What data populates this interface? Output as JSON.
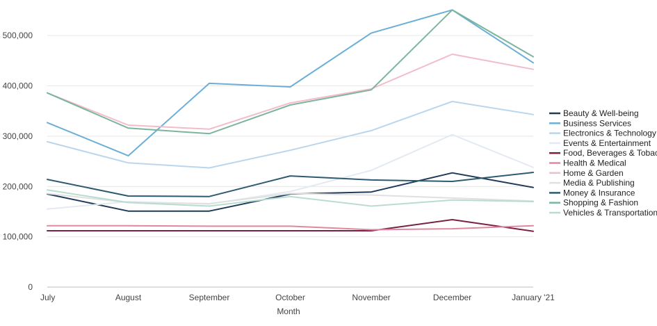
{
  "chart_data": {
    "type": "line",
    "title": "",
    "xlabel": "Month",
    "ylabel": "",
    "categories": [
      "July",
      "August",
      "September",
      "October",
      "November",
      "December",
      "January '21"
    ],
    "ylim": [
      0,
      550000
    ],
    "yticks": [
      0,
      100000,
      200000,
      300000,
      400000,
      500000
    ],
    "ytick_labels": [
      "0",
      "100,000",
      "200,000",
      "300,000",
      "400,000",
      "500,000"
    ],
    "grid": true,
    "legend_position": "right",
    "series": [
      {
        "name": "Beauty & Well-being",
        "color": "#1f3b5c",
        "values": [
          185000,
          151000,
          151000,
          185000,
          189000,
          227000,
          198000
        ]
      },
      {
        "name": "Business Services",
        "color": "#6baed6",
        "values": [
          327000,
          261000,
          405000,
          398000,
          505000,
          551000,
          446000
        ]
      },
      {
        "name": "Electronics & Technology",
        "color": "#b9d6ee",
        "values": [
          289000,
          247000,
          237000,
          272000,
          311000,
          369000,
          343000
        ]
      },
      {
        "name": "Events & Entertainment",
        "color": "#e3eaf2",
        "values": [
          155000,
          170000,
          165000,
          190000,
          232000,
          303000,
          238000
        ]
      },
      {
        "name": "Food, Beverages & Tobacco",
        "color": "#7b1f45",
        "values": [
          112000,
          112000,
          112000,
          112000,
          112000,
          134000,
          111000
        ]
      },
      {
        "name": "Health & Medical",
        "color": "#e0899e",
        "values": [
          122000,
          122000,
          121000,
          121000,
          114000,
          116000,
          122000
        ]
      },
      {
        "name": "Home & Garden",
        "color": "#f2bccb",
        "values": [
          386000,
          322000,
          314000,
          366000,
          394000,
          463000,
          433000
        ]
      },
      {
        "name": "Media & Publishing",
        "color": "#e0e0e0",
        "values": [
          186000,
          168000,
          166000,
          186000,
          183000,
          177000,
          171000
        ]
      },
      {
        "name": "Money & Insurance",
        "color": "#2e5a70",
        "values": [
          214000,
          181000,
          180000,
          221000,
          213000,
          210000,
          228000
        ]
      },
      {
        "name": "Shopping & Fashion",
        "color": "#7bb69c",
        "values": [
          386000,
          316000,
          305000,
          362000,
          392000,
          551000,
          458000
        ]
      },
      {
        "name": "Vehicles & Transportation",
        "color": "#b8ddd0",
        "values": [
          193000,
          168000,
          161000,
          180000,
          161000,
          173000,
          170000
        ]
      }
    ]
  }
}
